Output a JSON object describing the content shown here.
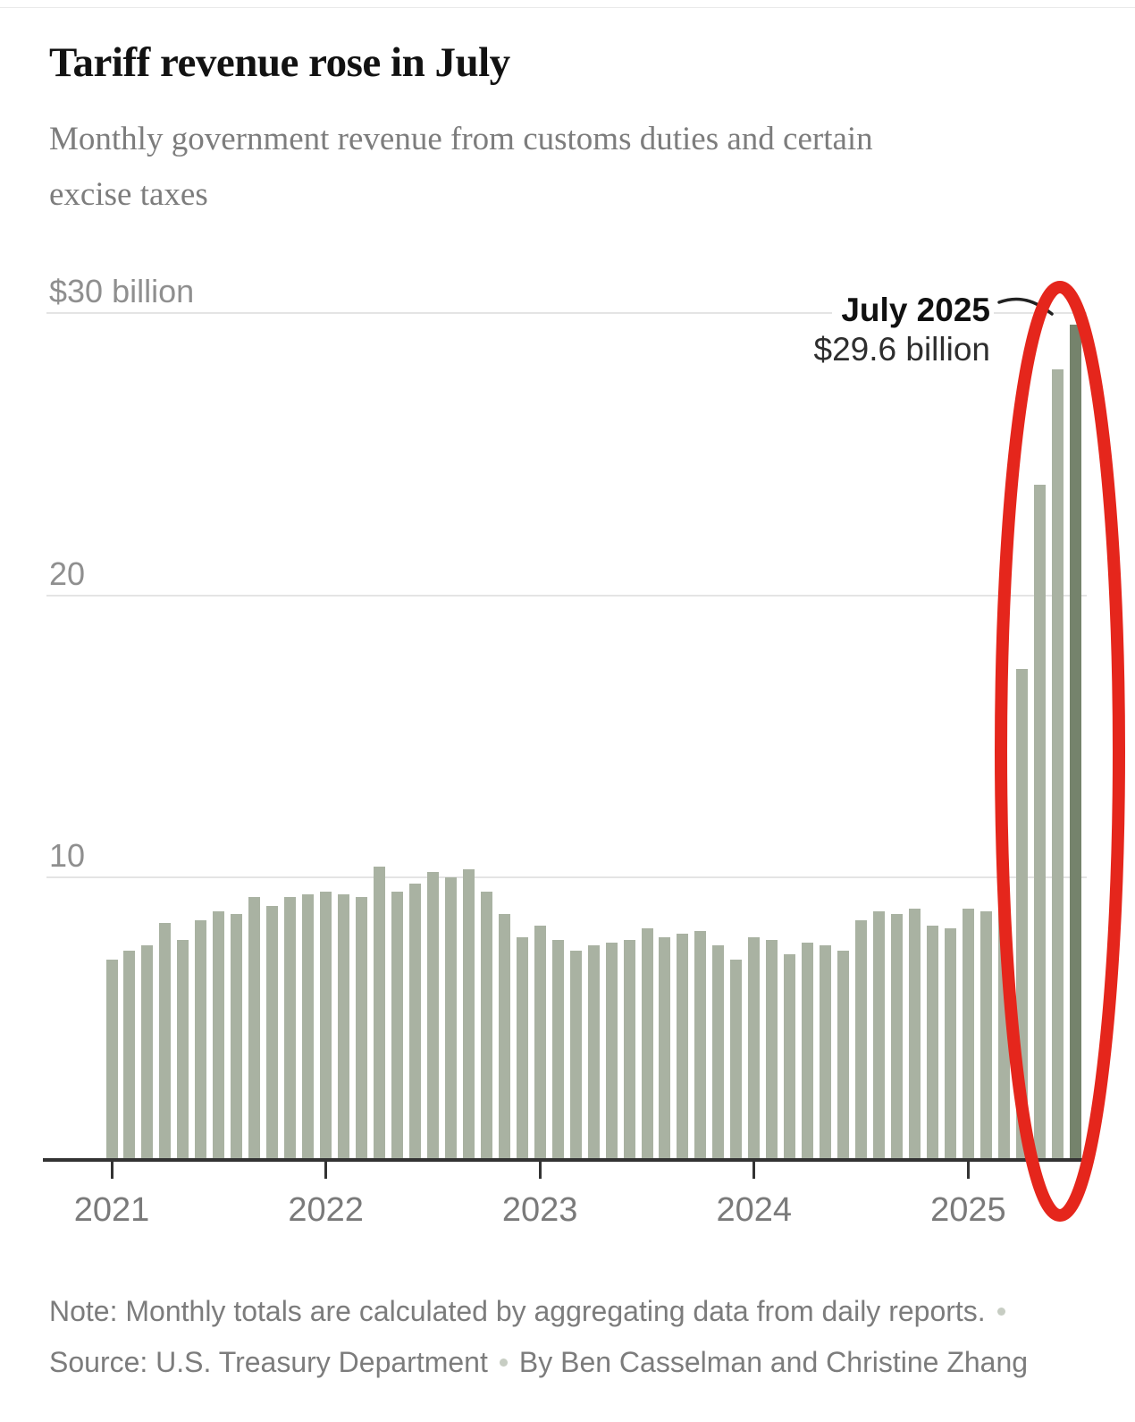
{
  "page": {
    "title": "Tariff revenue rose in July",
    "subtitle": "Monthly government revenue from customs duties and certain excise taxes"
  },
  "annotation": {
    "label": "July 2025",
    "value_label": "$29.6 billion"
  },
  "footer": {
    "note": "Note: Monthly totals are calculated by aggregating data from daily reports.",
    "source": "Source: U.S. Treasury Department",
    "byline": "By Ben Casselman and Christine Zhang"
  },
  "colors": {
    "bar": "#a9b2a2",
    "bar_highlight": "#75836c",
    "circle_annotation": "#e5261c",
    "axis": "#333333",
    "gridline": "#e4e4e4",
    "title_text": "#121212",
    "muted_text": "#7d7d7d"
  },
  "chart_data": {
    "type": "bar",
    "title": "Tariff revenue rose in July",
    "subtitle": "Monthly government revenue from customs duties and certain excise taxes",
    "unit": "billions of U.S. dollars",
    "ylim": [
      0,
      31
    ],
    "grid": "horizontal gridlines at 10, 20, 30",
    "legend_position": "none",
    "yticks": [
      {
        "value": 30,
        "label": "$30 billion"
      },
      {
        "value": 20,
        "label": "20"
      },
      {
        "value": 10,
        "label": "10"
      }
    ],
    "x_year_ticks": [
      "2021",
      "2022",
      "2023",
      "2024",
      "2025"
    ],
    "highlight": {
      "month": "2025-07",
      "value": 29.6,
      "callout_label": "July 2025",
      "callout_value": "$29.6 billion",
      "red_ellipse": "hand-drawn red ellipse circling the 2025 surge bars"
    },
    "categories": [
      "2021-01",
      "2021-02",
      "2021-03",
      "2021-04",
      "2021-05",
      "2021-06",
      "2021-07",
      "2021-08",
      "2021-09",
      "2021-10",
      "2021-11",
      "2021-12",
      "2022-01",
      "2022-02",
      "2022-03",
      "2022-04",
      "2022-05",
      "2022-06",
      "2022-07",
      "2022-08",
      "2022-09",
      "2022-10",
      "2022-11",
      "2022-12",
      "2023-01",
      "2023-02",
      "2023-03",
      "2023-04",
      "2023-05",
      "2023-06",
      "2023-07",
      "2023-08",
      "2023-09",
      "2023-10",
      "2023-11",
      "2023-12",
      "2024-01",
      "2024-02",
      "2024-03",
      "2024-04",
      "2024-05",
      "2024-06",
      "2024-07",
      "2024-08",
      "2024-09",
      "2024-10",
      "2024-11",
      "2024-12",
      "2025-01",
      "2025-02",
      "2025-03",
      "2025-04",
      "2025-05",
      "2025-06",
      "2025-07"
    ],
    "values": [
      7.1,
      7.4,
      7.6,
      8.4,
      7.8,
      8.5,
      8.8,
      8.7,
      9.3,
      9.0,
      9.3,
      9.4,
      9.5,
      9.4,
      9.3,
      10.4,
      9.5,
      9.8,
      10.2,
      10.0,
      10.3,
      9.5,
      8.7,
      7.9,
      8.3,
      7.8,
      7.4,
      7.6,
      7.7,
      7.8,
      8.2,
      7.9,
      8.0,
      8.1,
      7.6,
      7.1,
      7.9,
      7.8,
      7.3,
      7.7,
      7.6,
      7.4,
      8.5,
      8.8,
      8.7,
      8.9,
      8.3,
      8.2,
      8.9,
      8.8,
      9.5,
      17.4,
      23.9,
      28.0,
      29.6
    ]
  }
}
